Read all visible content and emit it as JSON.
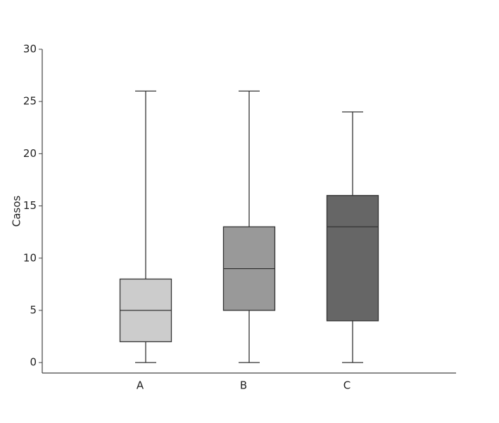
{
  "chart_data": {
    "type": "box",
    "y_label": "Casos",
    "categories": [
      "A",
      "B",
      "C"
    ],
    "min": [
      0,
      0,
      0
    ],
    "q1": [
      2,
      5,
      4
    ],
    "median": [
      5,
      9,
      13
    ],
    "q3": [
      8,
      13,
      16
    ],
    "max": [
      26,
      26,
      24
    ],
    "colors": [
      "#cccccc",
      "#999999",
      "#666666"
    ],
    "ylim": [
      -1,
      30
    ],
    "yticks": [
      0,
      5,
      10,
      15,
      20,
      25,
      30
    ]
  }
}
